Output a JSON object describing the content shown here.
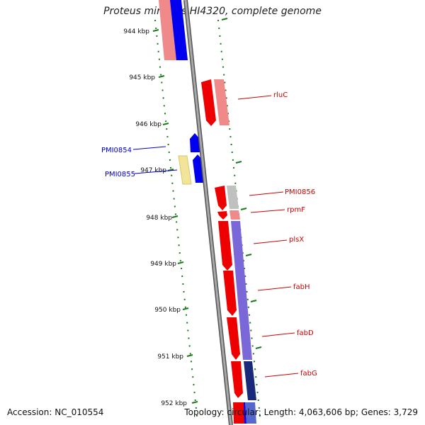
{
  "title": "Proteus mirabilis HI4320, complete genome",
  "accession_text": "Accession: NC_010554",
  "summary_text": "Topology: circular; Length: 4,063,606 bp; Genes: 3,729",
  "kbp_ticks": [
    "944 kbp",
    "945 kbp",
    "946 kbp",
    "947 kbp",
    "948 kbp",
    "949 kbp",
    "950 kbp",
    "951 kbp",
    "952 kbp"
  ],
  "gene_labels": {
    "rluC": "rluC",
    "PMI0854": "PMI0854",
    "PMI0855": "PMI0855",
    "PMI0856": "PMI0856",
    "rpmF": "rpmF",
    "plsX": "plsX",
    "fabH": "fabH",
    "fabD": "fabD",
    "fabG": "fabG"
  },
  "colors": {
    "forward_gene": "#ee0000",
    "reverse_gene": "#0000ee",
    "cog_pink": "#f08a8a",
    "cog_purple": "#7b68d8",
    "cog_yellow": "#f2e49a",
    "cog_grey": "#c0c0c0",
    "backbone": "#888888",
    "tick_green": "#1a7a1a",
    "label_red": "#cc0000",
    "label_blue": "#0000cc"
  }
}
